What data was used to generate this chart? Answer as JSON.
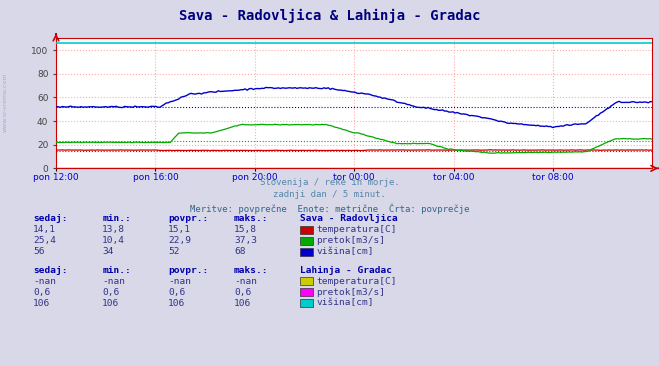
{
  "title": "Sava - Radovljica & Lahinja - Gradac",
  "subtitle1": "Slovenija / reke in morje.",
  "subtitle2": "zadnji dan / 5 minut.",
  "subtitle3": "Meritve: povprečne  Enote: metrične  Črta: povprečje",
  "bg_color": "#d8d8e8",
  "plot_bg_color": "#ffffff",
  "grid_color": "#ffaaaa",
  "ylim": [
    0,
    110
  ],
  "yticks": [
    0,
    20,
    40,
    60,
    80,
    100
  ],
  "xlabel_color": "#0000cc",
  "title_color": "#000080",
  "xtick_labels": [
    "pon 12:00",
    "pon 16:00",
    "pon 20:00",
    "tor 00:00",
    "tor 04:00",
    "tor 08:00"
  ],
  "n_points": 288,
  "sava_temp_color": "#cc0000",
  "sava_pretok_color": "#00aa00",
  "sava_visina_color": "#0000cc",
  "sava_temp_avg": 15.1,
  "sava_pretok_avg": 22.9,
  "sava_visina_avg": 52,
  "lahinja_temp_color": "#cccc00",
  "lahinja_pretok_color": "#ff00ff",
  "lahinja_visina_color": "#00cccc",
  "lahinja_visina_val": 106,
  "lahinja_pretok_val": 0.6,
  "axis_color": "#cc0000",
  "watermark_color": "#aaaacc"
}
